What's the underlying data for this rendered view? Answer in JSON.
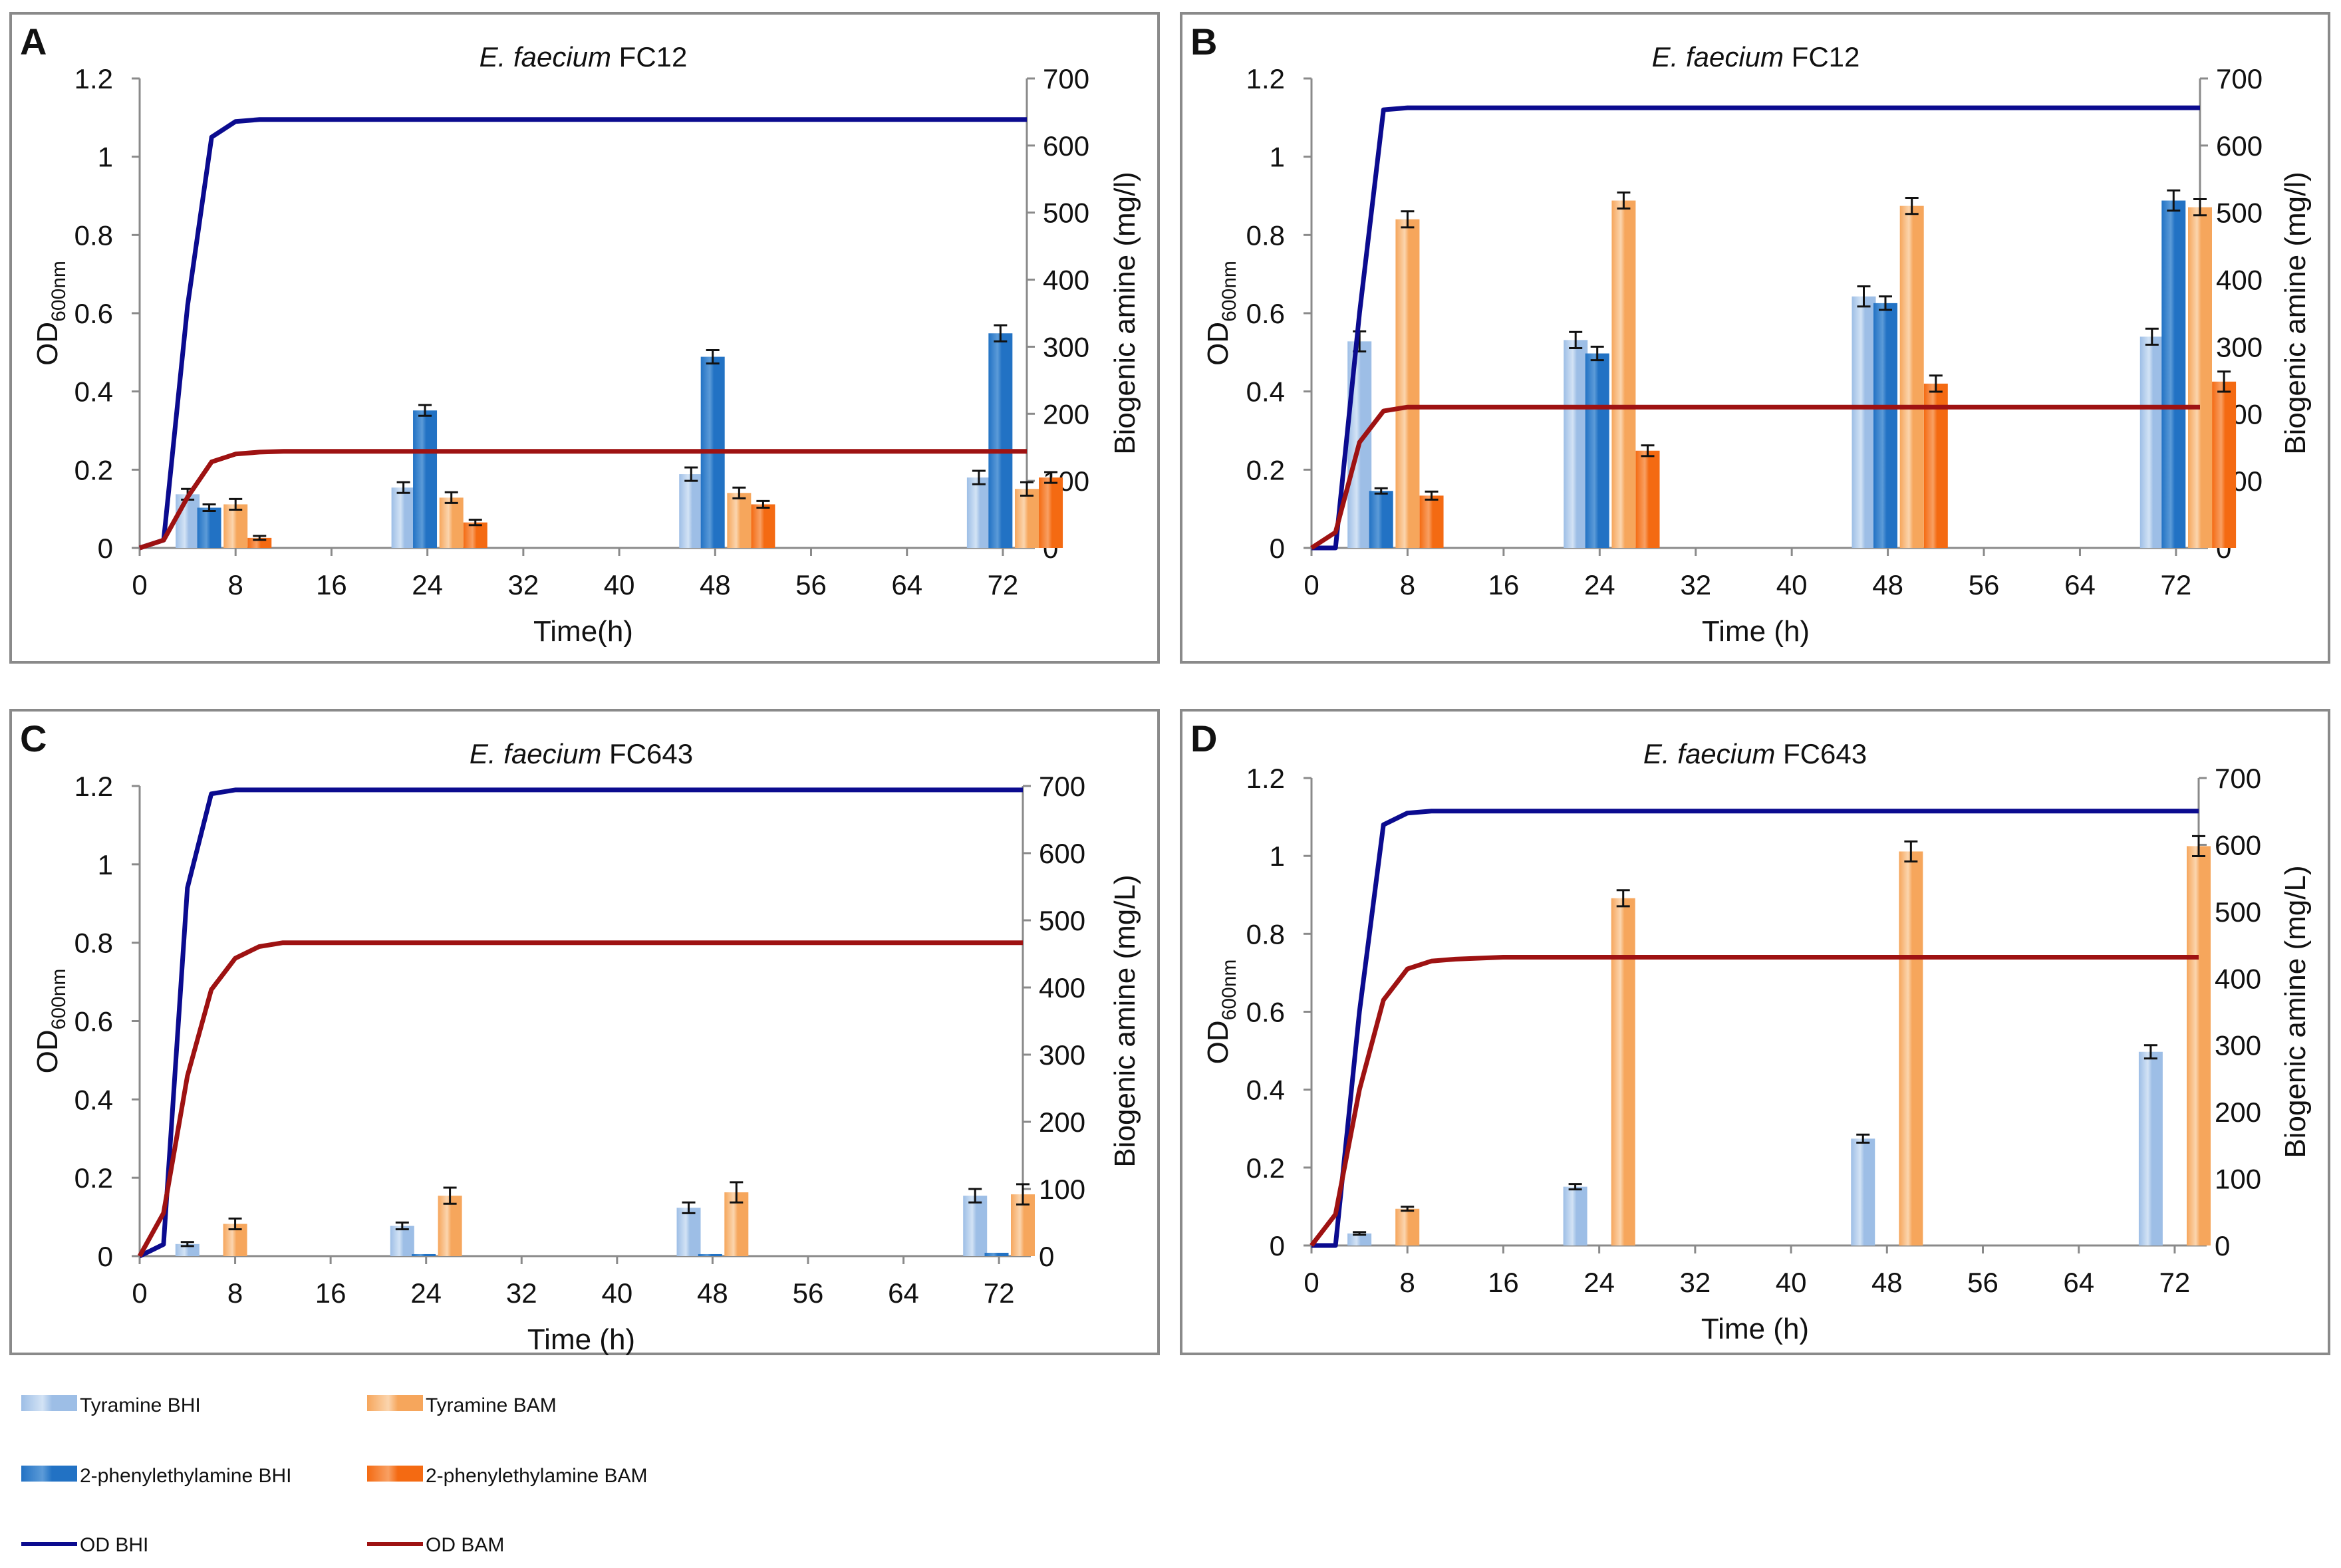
{
  "legend": [
    {
      "key": "tyr_bhi",
      "label": "Tyramine BHI",
      "kind": "bar",
      "color": "#9DBEE6",
      "light": "#D3E3F5"
    },
    {
      "key": "tyr_bam",
      "label": "Tyramine BAM",
      "kind": "bar",
      "color": "#F6A65C",
      "light": "#FBD5AE"
    },
    {
      "key": "pea_bhi",
      "label": "2-phenylethylamine BHI",
      "kind": "bar",
      "color": "#2272C4",
      "light": "#5C9BD8"
    },
    {
      "key": "pea_bam",
      "label": "2-phenylethylamine BAM",
      "kind": "bar",
      "color": "#F46A12",
      "light": "#F8A063"
    },
    {
      "key": "od_bhi",
      "label": "OD BHI",
      "kind": "line",
      "color": "#0B0B8F"
    },
    {
      "key": "od_bam",
      "label": "OD BAM",
      "kind": "line",
      "color": "#9E1212"
    }
  ],
  "chart_data": [
    {
      "panel_label": "A",
      "type": "bar+line",
      "title_italic": "E. faecium",
      "title_strain": "FC12",
      "xlabel": "Time(h)",
      "ylabel_main": "OD",
      "ylabel_sub": "600nm",
      "y2label": "Biogenic amine (mg/l)",
      "x_ticks": [
        0,
        8,
        16,
        24,
        32,
        40,
        48,
        56,
        64,
        72
      ],
      "xlim": [
        0,
        74
      ],
      "ylim": [
        0,
        1.2
      ],
      "y_ticks": [
        0,
        0.2,
        0.4,
        0.6,
        0.8,
        1,
        1.2
      ],
      "y_tick_labels": [
        "0",
        "0.2",
        "0.4",
        "0.6",
        "0.8",
        "1",
        "1.2"
      ],
      "y2lim": [
        0,
        700
      ],
      "y2_ticks": [
        0,
        100,
        200,
        300,
        400,
        500,
        600,
        700
      ],
      "bar_times": [
        6,
        24,
        48,
        72
      ],
      "bars": {
        "tyr_bhi": {
          "values": [
            80,
            90,
            110,
            105
          ],
          "errors": [
            8,
            8,
            10,
            10
          ]
        },
        "pea_bhi": {
          "values": [
            60,
            205,
            285,
            320
          ],
          "errors": [
            5,
            8,
            10,
            12
          ]
        },
        "tyr_bam": {
          "values": [
            65,
            75,
            82,
            88
          ],
          "errors": [
            8,
            8,
            8,
            10
          ]
        },
        "pea_bam": {
          "values": [
            15,
            38,
            65,
            105
          ],
          "errors": [
            3,
            4,
            5,
            8
          ]
        }
      },
      "od_bhi": {
        "x": [
          0,
          2,
          4,
          6,
          8,
          10,
          74
        ],
        "y": [
          0,
          0.02,
          0.62,
          1.05,
          1.09,
          1.095,
          1.095
        ]
      },
      "od_bam": {
        "x": [
          0,
          2,
          4,
          6,
          8,
          10,
          12,
          74
        ],
        "y": [
          0,
          0.02,
          0.13,
          0.22,
          0.24,
          0.245,
          0.247,
          0.247
        ]
      }
    },
    {
      "panel_label": "B",
      "type": "bar+line",
      "title_italic": "E. faecium",
      "title_strain": "FC12",
      "xlabel": "Time (h)",
      "ylabel_main": "OD",
      "ylabel_sub": "600nm",
      "y2label": "Biogenic amine (mg/l)",
      "x_ticks": [
        0,
        8,
        16,
        24,
        32,
        40,
        48,
        56,
        64,
        72
      ],
      "xlim": [
        0,
        74
      ],
      "ylim": [
        0,
        1.2
      ],
      "y_ticks": [
        0,
        0.2,
        0.4,
        0.6,
        0.8,
        1,
        1.2
      ],
      "y_tick_labels": [
        "0",
        "0.2",
        "0.4",
        "0.6",
        "0.8",
        "1",
        "1.2"
      ],
      "y2lim": [
        0,
        700
      ],
      "y2_ticks": [
        0,
        100,
        200,
        300,
        400,
        500,
        600,
        700
      ],
      "bar_times": [
        6,
        24,
        48,
        72
      ],
      "bars": {
        "tyr_bhi": {
          "values": [
            308,
            310,
            375,
            315
          ],
          "errors": [
            15,
            12,
            15,
            12
          ]
        },
        "pea_bhi": {
          "values": [
            85,
            290,
            365,
            518
          ],
          "errors": [
            4,
            10,
            10,
            15
          ]
        },
        "tyr_bam": {
          "values": [
            490,
            518,
            510,
            508
          ],
          "errors": [
            12,
            12,
            12,
            12
          ]
        },
        "pea_bam": {
          "values": [
            78,
            145,
            245,
            248
          ],
          "errors": [
            6,
            8,
            12,
            15
          ]
        }
      },
      "od_bhi": {
        "x": [
          0,
          2,
          4,
          6,
          8,
          74
        ],
        "y": [
          0,
          0,
          0.6,
          1.12,
          1.125,
          1.125
        ]
      },
      "od_bam": {
        "x": [
          0,
          2,
          4,
          6,
          8,
          74
        ],
        "y": [
          0,
          0.04,
          0.27,
          0.35,
          0.36,
          0.36
        ]
      }
    },
    {
      "panel_label": "C",
      "type": "bar+line",
      "title_italic": "E. faecium",
      "title_strain": "FC643",
      "xlabel": "Time (h)",
      "ylabel_main": "OD",
      "ylabel_sub": "600nm",
      "y2label": "Biogenic amine (mg/L)",
      "x_ticks": [
        0,
        8,
        16,
        24,
        32,
        40,
        48,
        56,
        64,
        72
      ],
      "xlim": [
        0,
        74
      ],
      "ylim": [
        0,
        1.2
      ],
      "y_ticks": [
        0,
        0.2,
        0.4,
        0.6,
        0.8,
        1,
        1.2
      ],
      "y_tick_labels": [
        "0",
        "0.2",
        "0.4",
        "0.6",
        "0.8",
        "1",
        "1.2"
      ],
      "y2lim": [
        0,
        700
      ],
      "y2_ticks": [
        0,
        100,
        200,
        300,
        400,
        500,
        600,
        700
      ],
      "bar_times": [
        6,
        24,
        48,
        72
      ],
      "bars": {
        "tyr_bhi": {
          "values": [
            18,
            45,
            72,
            90
          ],
          "errors": [
            3,
            5,
            8,
            10
          ]
        },
        "pea_bhi": {
          "values": [
            0,
            3,
            3,
            5
          ],
          "errors": [
            0,
            0,
            0,
            0
          ]
        },
        "tyr_bam": {
          "values": [
            48,
            90,
            95,
            92
          ],
          "errors": [
            8,
            12,
            15,
            15
          ]
        },
        "pea_bam": {
          "values": [
            0,
            0,
            0,
            0
          ],
          "errors": [
            0,
            0,
            0,
            0
          ]
        }
      },
      "od_bhi": {
        "x": [
          0,
          2,
          4,
          6,
          8,
          74
        ],
        "y": [
          0,
          0.03,
          0.94,
          1.18,
          1.19,
          1.19
        ]
      },
      "od_bam": {
        "x": [
          0,
          2,
          4,
          6,
          8,
          10,
          12,
          74
        ],
        "y": [
          0,
          0.11,
          0.46,
          0.68,
          0.76,
          0.79,
          0.8,
          0.8
        ]
      }
    },
    {
      "panel_label": "D",
      "type": "bar+line",
      "title_italic": "E. faecium",
      "title_strain": "FC643",
      "xlabel": "Time (h)",
      "ylabel_main": "OD",
      "ylabel_sub": "600nm",
      "y2label": "Biogenic amine (mg/L)",
      "x_ticks": [
        0,
        8,
        16,
        24,
        32,
        40,
        48,
        56,
        64,
        72
      ],
      "xlim": [
        0,
        74
      ],
      "ylim": [
        0,
        1.2
      ],
      "y_ticks": [
        0,
        0.2,
        0.4,
        0.6,
        0.8,
        1,
        1.2
      ],
      "y_tick_labels": [
        "0",
        "0.2",
        "0.4",
        "0.6",
        "0.8",
        "1",
        "1.2"
      ],
      "y2lim": [
        0,
        700
      ],
      "y2_ticks": [
        0,
        100,
        200,
        300,
        400,
        500,
        600,
        700
      ],
      "bar_times": [
        6,
        24,
        48,
        72
      ],
      "bars": {
        "tyr_bhi": {
          "values": [
            18,
            88,
            160,
            290
          ],
          "errors": [
            2,
            4,
            6,
            10
          ]
        },
        "pea_bhi": {
          "values": [
            0,
            0,
            0,
            0
          ],
          "errors": [
            0,
            0,
            0,
            0
          ]
        },
        "tyr_bam": {
          "values": [
            55,
            520,
            590,
            598
          ],
          "errors": [
            3,
            12,
            15,
            15
          ]
        },
        "pea_bam": {
          "values": [
            0,
            0,
            0,
            0
          ],
          "errors": [
            0,
            0,
            0,
            0
          ]
        }
      },
      "od_bhi": {
        "x": [
          0,
          2,
          4,
          6,
          8,
          10,
          74
        ],
        "y": [
          0,
          0,
          0.6,
          1.08,
          1.11,
          1.115,
          1.115
        ]
      },
      "od_bam": {
        "x": [
          0,
          2,
          4,
          6,
          8,
          10,
          12,
          16,
          74
        ],
        "y": [
          0,
          0.08,
          0.4,
          0.63,
          0.71,
          0.73,
          0.735,
          0.74,
          0.74
        ]
      }
    }
  ]
}
